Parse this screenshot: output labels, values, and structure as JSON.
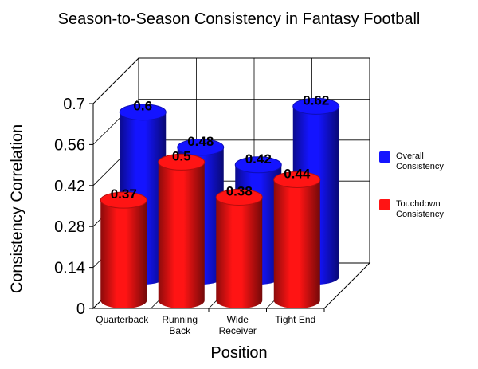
{
  "chart_data": {
    "type": "bar",
    "title": "Season-to-Season Consistency in Fantasy Football",
    "xlabel": "Position",
    "ylabel": "Consistency Correlation",
    "categories": [
      "Quarterback",
      "Running Back",
      "Wide Receiver",
      "Tight End"
    ],
    "series": [
      {
        "name": "Overall Consistency",
        "values": [
          0.6,
          0.48,
          0.42,
          0.62
        ],
        "color": "#1414ff"
      },
      {
        "name": "Touchdown Consistency",
        "values": [
          0.37,
          0.5,
          0.38,
          0.44
        ],
        "color": "#ff1414"
      }
    ],
    "yticks": [
      "0",
      "0.14",
      "0.28",
      "0.42",
      "0.56",
      "0.7"
    ],
    "ylim": [
      0,
      0.7
    ],
    "grid": true,
    "legend": "right",
    "data_labels": true
  }
}
